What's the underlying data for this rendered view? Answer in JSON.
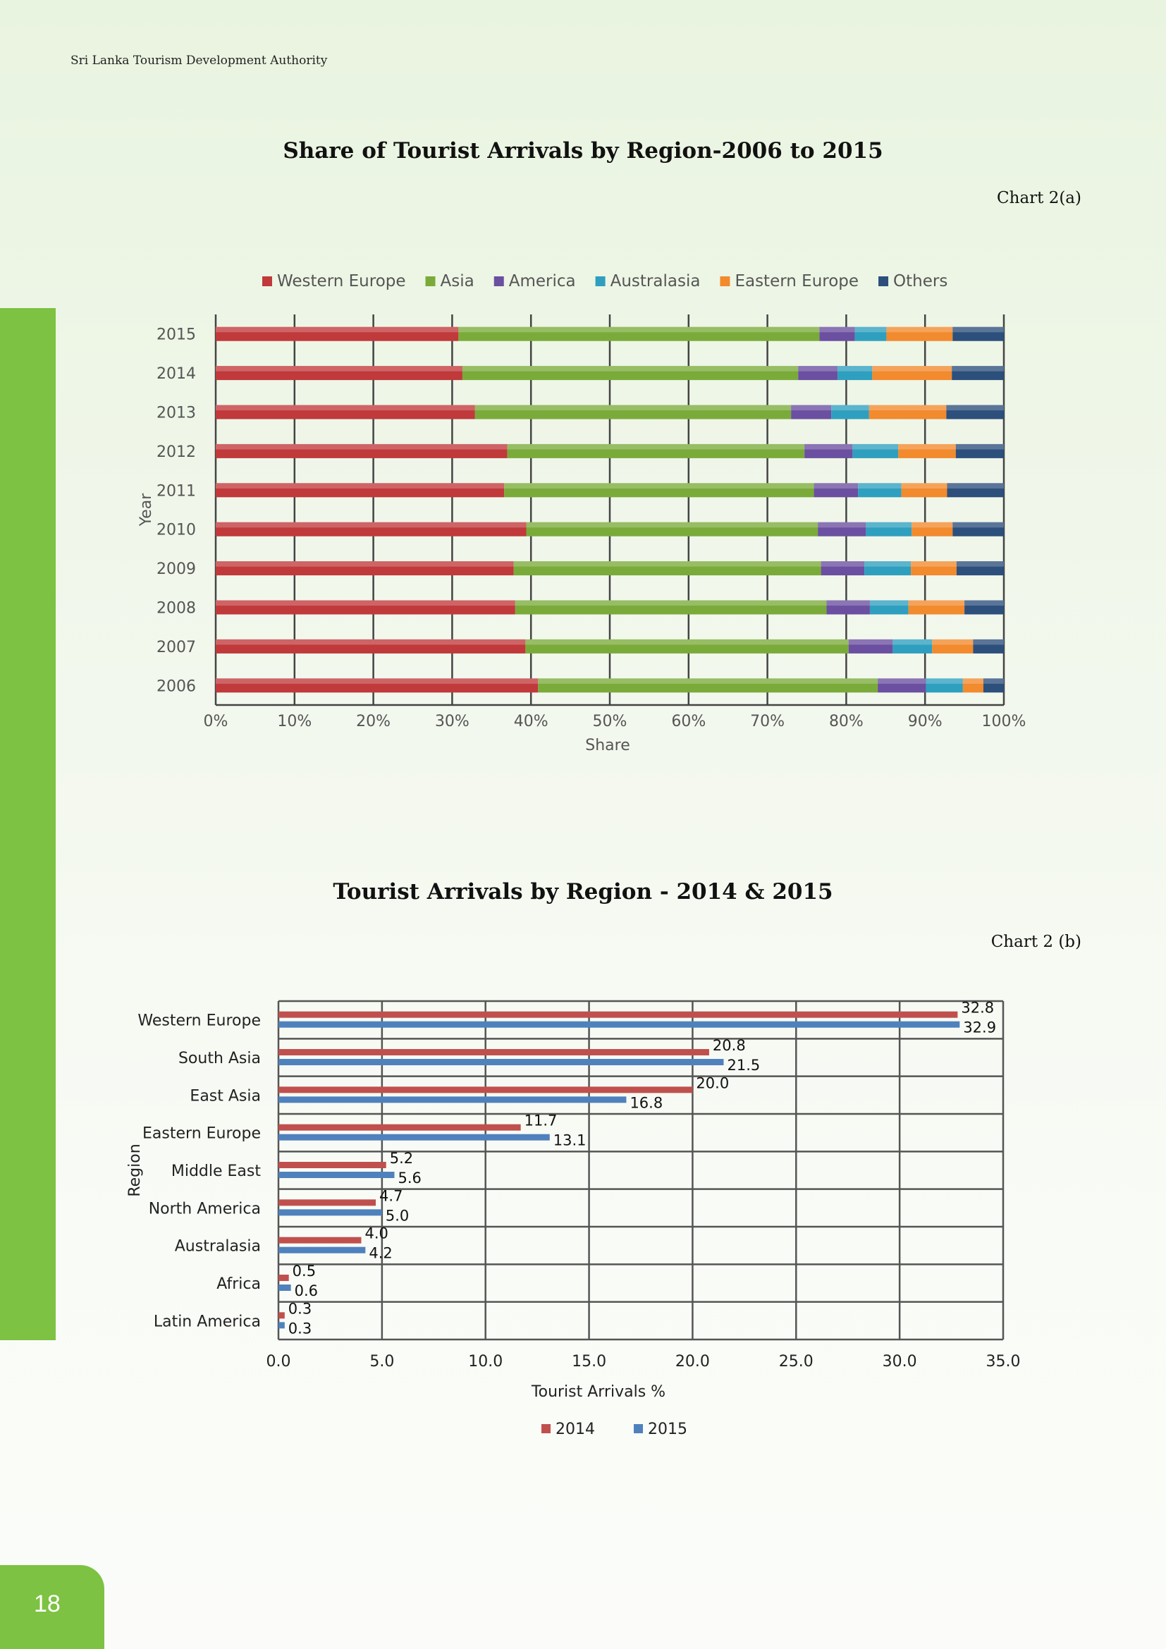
{
  "page": {
    "header": "Sri Lanka Tourism Development Authority",
    "page_number": "18"
  },
  "chart_a": {
    "title": "Share of Tourist Arrivals by Region-2006 to 2015",
    "reference": "Chart 2(a)"
  },
  "chart_b": {
    "title": "Tourist Arrivals by Region - 2014 & 2015",
    "reference": "Chart 2 (b)"
  },
  "chart_data": [
    {
      "type": "bar",
      "orientation": "horizontal",
      "stacked": "percent",
      "title": "Share of Tourist Arrivals by Region-2006 to 2015",
      "xlabel": "Share",
      "ylabel": "Year",
      "xlim": [
        0,
        100
      ],
      "xticks": [
        "0%",
        "10%",
        "20%",
        "30%",
        "40%",
        "50%",
        "60%",
        "70%",
        "80%",
        "90%",
        "100%"
      ],
      "grid": true,
      "legend_position": "top",
      "categories": [
        "2015",
        "2014",
        "2013",
        "2012",
        "2011",
        "2010",
        "2009",
        "2008",
        "2007",
        "2006"
      ],
      "series": [
        {
          "name": "Western Europe",
          "color": "#c0393b",
          "values": [
            30.8,
            31.3,
            32.9,
            37.0,
            36.6,
            39.4,
            37.8,
            38.0,
            39.3,
            40.9
          ]
        },
        {
          "name": "Asia",
          "color": "#7aab3a",
          "values": [
            45.8,
            42.6,
            40.1,
            37.7,
            39.3,
            37.0,
            39.0,
            39.5,
            41.0,
            43.1
          ]
        },
        {
          "name": "America",
          "color": "#6b4fa0",
          "values": [
            4.5,
            5.0,
            5.1,
            6.1,
            5.6,
            6.1,
            5.5,
            5.5,
            5.6,
            6.1
          ]
        },
        {
          "name": "Australasia",
          "color": "#2f9fbf",
          "values": [
            4.0,
            4.4,
            4.8,
            5.8,
            5.5,
            5.8,
            5.9,
            4.9,
            5.0,
            4.7
          ]
        },
        {
          "name": "Eastern Europe",
          "color": "#f28a2e",
          "values": [
            8.4,
            10.1,
            9.8,
            7.3,
            5.8,
            5.2,
            5.8,
            7.1,
            5.2,
            2.6
          ]
        },
        {
          "name": "Others",
          "color": "#2c4f7c",
          "values": [
            6.5,
            6.6,
            7.3,
            6.1,
            7.2,
            6.5,
            6.0,
            5.0,
            3.9,
            2.6
          ]
        }
      ]
    },
    {
      "type": "bar",
      "orientation": "horizontal",
      "title": "Tourist Arrivals by Region - 2014 & 2015",
      "xlabel": "Tourist Arrivals %",
      "ylabel": "Region",
      "xlim": [
        0,
        35
      ],
      "xticks": [
        "0.0",
        "5.0",
        "10.0",
        "15.0",
        "20.0",
        "25.0",
        "30.0",
        "35.0"
      ],
      "grid": true,
      "legend_position": "bottom",
      "categories": [
        "Western Europe",
        "South Asia",
        "East Asia",
        "Eastern Europe",
        "Middle East",
        "North America",
        "Australasia",
        "Africa",
        "Latin America"
      ],
      "series": [
        {
          "name": "2014",
          "color": "#c0504d",
          "values": [
            32.8,
            20.8,
            20.0,
            11.7,
            5.2,
            4.7,
            4.0,
            0.5,
            0.3
          ],
          "labels": [
            "32.8",
            "20.8",
            "20.0",
            "11.7",
            "5.2",
            "4.7",
            "4.0",
            "0.5",
            "0.3"
          ]
        },
        {
          "name": "2015",
          "color": "#4f81bd",
          "values": [
            32.9,
            21.5,
            16.8,
            13.1,
            5.6,
            5.0,
            4.2,
            0.6,
            0.3
          ],
          "labels": [
            "32.9",
            "21.5",
            "16.8",
            "13.1",
            "5.6",
            "5.0",
            "4.2",
            "0.6",
            "0.3"
          ]
        }
      ]
    }
  ]
}
